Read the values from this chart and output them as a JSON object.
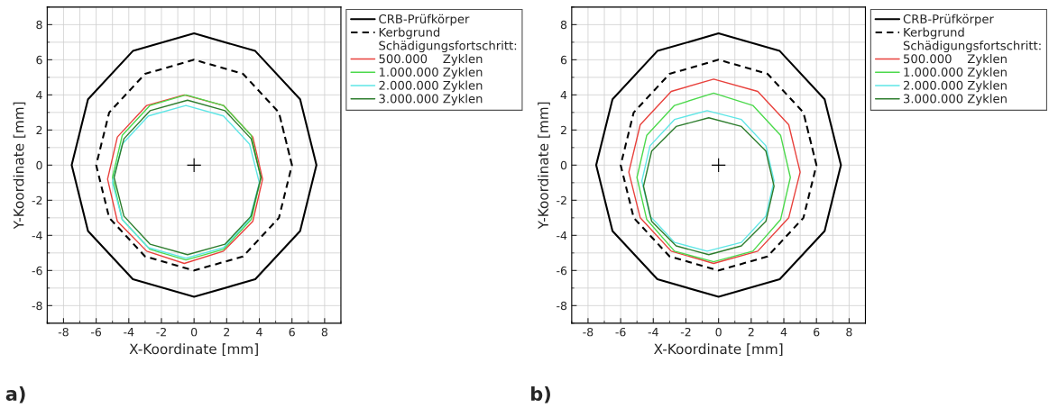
{
  "chart_data": [
    {
      "type": "line",
      "xlabel": "X-Koordinate [mm]",
      "ylabel": "Y-Koordinate [mm]",
      "legend_title": "Schädigungsfortschritt:",
      "legend": "top right",
      "grid": true,
      "xlim": [
        -9,
        9
      ],
      "ylim": [
        -9,
        9
      ],
      "xticks": [
        -8,
        -6,
        -4,
        -2,
        0,
        2,
        4,
        6,
        8
      ],
      "yticks": [
        -8,
        -6,
        -4,
        -2,
        0,
        2,
        4,
        6,
        8
      ],
      "annotations": [
        "a)"
      ],
      "series": [
        {
          "name": "CRB-Prüfkörper",
          "color": "#000000",
          "line_style": "solid",
          "x": [
            7.5,
            6.5,
            3.75,
            0,
            -3.75,
            -6.5,
            -7.5,
            -6.5,
            -3.75,
            0,
            3.75,
            6.5,
            7.5
          ],
          "values": [
            0,
            3.75,
            6.5,
            7.5,
            6.5,
            3.75,
            0,
            -3.75,
            -6.5,
            -7.5,
            -6.5,
            -3.75,
            0
          ]
        },
        {
          "name": "Kerbgrund",
          "color": "#000000",
          "line_style": "dashed",
          "x": [
            6,
            5.2,
            3,
            0,
            -3,
            -5.2,
            -6,
            -5.2,
            -3,
            0,
            3,
            5.2,
            6
          ],
          "values": [
            0,
            3,
            5.2,
            6,
            5.2,
            3,
            0,
            -3,
            -5.2,
            -6,
            -5.2,
            -3,
            0
          ]
        },
        {
          "name": "500.000    Zyklen",
          "color": "#e8413c",
          "line_style": "solid",
          "x": [
            4.2,
            3.6,
            1.8,
            -0.6,
            -2.9,
            -4.7,
            -5.3,
            -4.7,
            -2.9,
            -0.6,
            1.8,
            3.6,
            4.2
          ],
          "values": [
            -0.8,
            1.6,
            3.4,
            4.0,
            3.4,
            1.6,
            -0.8,
            -3.2,
            -4.9,
            -5.6,
            -4.9,
            -3.2,
            -0.8
          ]
        },
        {
          "name": "1.000.000 Zyklen",
          "color": "#4cd94c",
          "line_style": "solid",
          "x": [
            4.1,
            3.5,
            1.8,
            -0.5,
            -2.7,
            -4.4,
            -5.0,
            -4.4,
            -2.7,
            -0.5,
            1.8,
            3.5,
            4.1
          ],
          "values": [
            -0.7,
            1.7,
            3.4,
            4.0,
            3.4,
            1.7,
            -0.7,
            -3.1,
            -4.8,
            -5.4,
            -4.8,
            -3.1,
            -0.7
          ]
        },
        {
          "name": "2.000.000 Zyklen",
          "color": "#5fe6e6",
          "line_style": "solid",
          "x": [
            4.0,
            3.4,
            1.8,
            -0.5,
            -2.8,
            -4.4,
            -5.0,
            -4.4,
            -2.8,
            -0.5,
            1.8,
            3.4,
            4.0
          ],
          "values": [
            -1.0,
            1.2,
            2.8,
            3.4,
            2.8,
            1.2,
            -1.0,
            -3.1,
            -4.7,
            -5.3,
            -4.7,
            -3.1,
            -1.0
          ]
        },
        {
          "name": "3.000.000 Zyklen",
          "color": "#2e7d2e",
          "line_style": "solid",
          "x": [
            4.1,
            3.5,
            1.9,
            -0.4,
            -2.7,
            -4.3,
            -4.9,
            -4.3,
            -2.7,
            -0.4,
            1.9,
            3.5,
            4.1
          ],
          "values": [
            -0.7,
            1.5,
            3.1,
            3.7,
            3.1,
            1.5,
            -0.7,
            -2.9,
            -4.5,
            -5.1,
            -4.5,
            -2.9,
            -0.7
          ]
        },
        {
          "type": "scatter",
          "marker": "cross",
          "color": "#000000",
          "x": [
            0
          ],
          "values": [
            0
          ]
        }
      ]
    },
    {
      "type": "line",
      "xlabel": "X-Koordinate [mm]",
      "ylabel": "Y-Koordinate [mm]",
      "legend_title": "Schädigungsfortschritt:",
      "legend": "top right",
      "grid": true,
      "xlim": [
        -9,
        9
      ],
      "ylim": [
        -9,
        9
      ],
      "xticks": [
        -8,
        -6,
        -4,
        -2,
        0,
        2,
        4,
        6,
        8
      ],
      "yticks": [
        -8,
        -6,
        -4,
        -2,
        0,
        2,
        4,
        6,
        8
      ],
      "annotations": [
        "b)"
      ],
      "series": [
        {
          "name": "CRB-Prüfkörper",
          "color": "#000000",
          "line_style": "solid",
          "x": [
            7.5,
            6.5,
            3.75,
            0,
            -3.75,
            -6.5,
            -7.5,
            -6.5,
            -3.75,
            0,
            3.75,
            6.5,
            7.5
          ],
          "values": [
            0,
            3.75,
            6.5,
            7.5,
            6.5,
            3.75,
            0,
            -3.75,
            -6.5,
            -7.5,
            -6.5,
            -3.75,
            0
          ]
        },
        {
          "name": "Kerbgrund",
          "color": "#000000",
          "line_style": "dashed",
          "x": [
            6,
            5.2,
            3,
            0,
            -3,
            -5.2,
            -6,
            -5.2,
            -3,
            0,
            3,
            5.2,
            6
          ],
          "values": [
            0,
            3,
            5.2,
            6,
            5.2,
            3,
            0,
            -3,
            -5.2,
            -6,
            -5.2,
            -3,
            0
          ]
        },
        {
          "name": "500.000    Zyklen",
          "color": "#e8413c",
          "line_style": "solid",
          "x": [
            5.0,
            4.3,
            2.4,
            -0.3,
            -2.9,
            -4.8,
            -5.5,
            -4.8,
            -2.9,
            -0.3,
            2.4,
            4.3,
            5.0
          ],
          "values": [
            -0.4,
            2.3,
            4.2,
            4.9,
            4.2,
            2.3,
            -0.4,
            -3.0,
            -4.9,
            -5.6,
            -4.9,
            -3.0,
            -0.4
          ]
        },
        {
          "name": "1.000.000 Zyklen",
          "color": "#4cd94c",
          "line_style": "solid",
          "x": [
            4.4,
            3.8,
            2.1,
            -0.3,
            -2.7,
            -4.4,
            -5.0,
            -4.4,
            -2.7,
            -0.3,
            2.1,
            3.8,
            4.4
          ],
          "values": [
            -0.7,
            1.7,
            3.4,
            4.1,
            3.4,
            1.7,
            -0.7,
            -3.1,
            -4.9,
            -5.5,
            -4.9,
            -3.1,
            -0.7
          ]
        },
        {
          "name": "2.000.000 Zyklen",
          "color": "#5fe6e6",
          "line_style": "solid",
          "x": [
            3.4,
            2.9,
            1.4,
            -0.7,
            -2.7,
            -4.2,
            -4.7,
            -4.2,
            -2.7,
            -0.7,
            1.4,
            2.9,
            3.4
          ],
          "values": [
            -0.9,
            1.1,
            2.6,
            3.1,
            2.6,
            1.1,
            -0.9,
            -2.9,
            -4.4,
            -4.9,
            -4.4,
            -2.9,
            -0.9
          ]
        },
        {
          "name": "3.000.000 Zyklen",
          "color": "#2e7d2e",
          "line_style": "solid",
          "x": [
            3.4,
            2.9,
            1.4,
            -0.6,
            -2.6,
            -4.1,
            -4.6,
            -4.1,
            -2.6,
            -0.6,
            1.4,
            2.9,
            3.4
          ],
          "values": [
            -1.2,
            0.8,
            2.2,
            2.7,
            2.2,
            0.8,
            -1.2,
            -3.2,
            -4.6,
            -5.1,
            -4.6,
            -3.2,
            -1.2
          ]
        },
        {
          "type": "scatter",
          "marker": "cross",
          "color": "#000000",
          "x": [
            0
          ],
          "values": [
            0
          ]
        }
      ]
    }
  ]
}
